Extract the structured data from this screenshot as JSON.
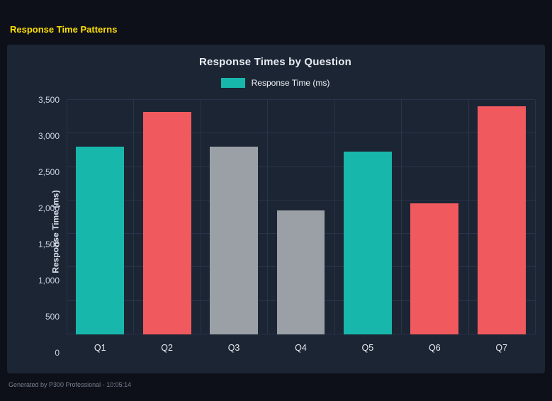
{
  "page": {
    "title": "Response Time Patterns",
    "footer": "Generated by P300 Professional - 10:05:14"
  },
  "chart": {
    "title": "Response Times by Question",
    "legend_label": "Response Time (ms)",
    "y_axis_title": "Response Time (ms)"
  },
  "chart_data": {
    "type": "bar",
    "title": "Response Times by Question",
    "categories": [
      "Q1",
      "Q2",
      "Q3",
      "Q4",
      "Q5",
      "Q6",
      "Q7"
    ],
    "series": [
      {
        "name": "Response Time (ms)",
        "values": [
          2800,
          3320,
          2800,
          1850,
          2730,
          1960,
          3400
        ]
      }
    ],
    "point_colors": [
      "#17b8ab",
      "#f05a5e",
      "#9aa0a6",
      "#9aa0a6",
      "#17b8ab",
      "#f05a5e",
      "#f05a5e"
    ],
    "xlabel": "",
    "ylabel": "Response Time (ms)",
    "ylim": [
      0,
      3500
    ],
    "ytick_step": 500,
    "ytick_labels": [
      "0",
      "500",
      "1,000",
      "1,500",
      "2,000",
      "2,500",
      "3,000",
      "3,500"
    ],
    "grid": true,
    "legend_position": "top",
    "colors": {
      "teal": "#17b8ab",
      "red": "#f05a5e",
      "gray": "#9aa0a6",
      "page_background": "#0d1019",
      "panel_background": "#1c2534",
      "gridline": "#2a3349",
      "title_yellow": "#ffdf00"
    }
  }
}
